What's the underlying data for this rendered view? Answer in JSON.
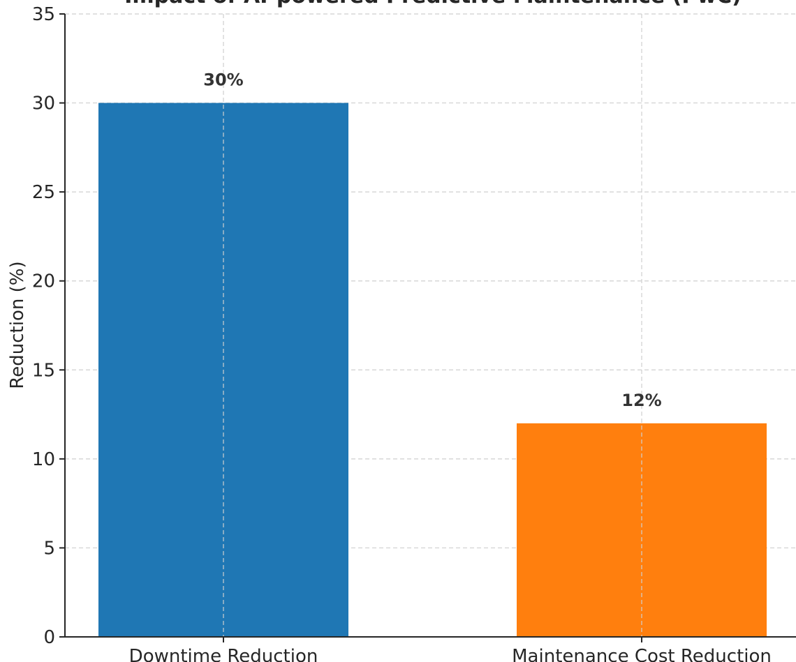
{
  "chart_data": {
    "type": "bar",
    "title": "Impact of AI-powered Predictive Maintenance (PwC)",
    "xlabel": "",
    "ylabel": "Reduction (%)",
    "categories": [
      "Downtime Reduction",
      "Maintenance Cost Reduction"
    ],
    "values": [
      30,
      12
    ],
    "data_labels": [
      "30%",
      "12%"
    ],
    "colors": [
      "#1f77b4",
      "#ff7f0e"
    ],
    "ylim": [
      0,
      35
    ],
    "yticks": [
      0,
      5,
      10,
      15,
      20,
      25,
      30,
      35
    ],
    "ytick_labels": [
      "0",
      "5",
      "10",
      "15",
      "20",
      "25",
      "30",
      "35"
    ],
    "grid": true,
    "legend": "none"
  }
}
